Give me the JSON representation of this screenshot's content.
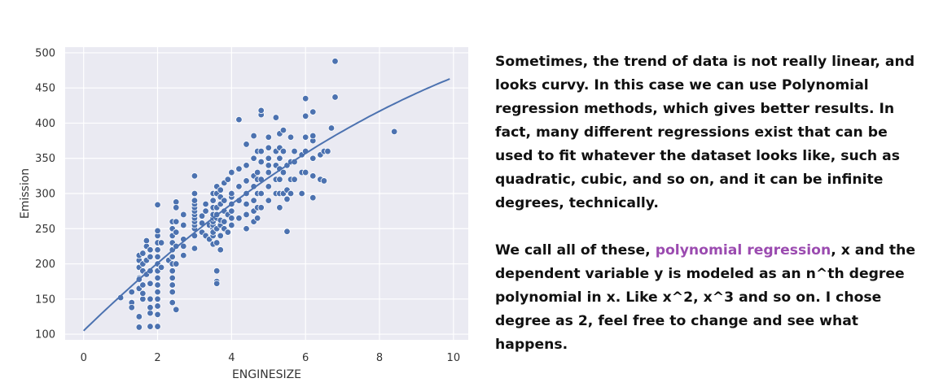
{
  "colors": {
    "plot_bg": "#eaeaf2",
    "grid": "#ffffff",
    "points": "#4c72b0",
    "point_edge": "#ffffff",
    "curve": "#4c72b0",
    "highlight": "#9b4bb0"
  },
  "text": {
    "para1": "Sometimes, the trend of data is not really linear, and looks curvy. In this case we can use Polynomial regression methods, which gives better results. In fact, many different regressions exist that can be used to fit whatever the dataset looks like, such as quadratic, cubic, and so on, and it can be infinite degrees, technically.",
    "para2_pre": "We call all of these, ",
    "para2_highlight": "polynomial regression",
    "para2_post": ", x and the dependent variable y is modeled as an n^th degree polynomial in x. Like x^2, x^3 and so on. I chose degree as 2, feel free to change and see what happens."
  },
  "chart_data": {
    "type": "scatter",
    "xlabel": "ENGINESIZE",
    "ylabel": "Emission",
    "xlim": [
      -0.5,
      10.4
    ],
    "ylim": [
      92,
      508
    ],
    "xticks": [
      0,
      2,
      4,
      6,
      8,
      10
    ],
    "yticks": [
      100,
      150,
      200,
      250,
      300,
      350,
      400,
      450,
      500
    ],
    "grid": true,
    "fit_curve": {
      "degree": 2,
      "coefficients": [
        105,
        51,
        -1.5
      ],
      "x_range": [
        0,
        9.9
      ]
    },
    "points": [
      [
        1.0,
        152
      ],
      [
        1.3,
        160
      ],
      [
        1.3,
        145
      ],
      [
        1.3,
        138
      ],
      [
        1.5,
        165
      ],
      [
        1.5,
        180
      ],
      [
        1.5,
        195
      ],
      [
        1.5,
        205
      ],
      [
        1.5,
        212
      ],
      [
        1.5,
        178
      ],
      [
        1.5,
        125
      ],
      [
        1.5,
        110
      ],
      [
        1.6,
        170
      ],
      [
        1.6,
        190
      ],
      [
        1.6,
        200
      ],
      [
        1.6,
        215
      ],
      [
        1.6,
        150
      ],
      [
        1.6,
        158
      ],
      [
        1.7,
        185
      ],
      [
        1.7,
        205
      ],
      [
        1.7,
        225
      ],
      [
        1.7,
        233
      ],
      [
        1.8,
        172
      ],
      [
        1.8,
        190
      ],
      [
        1.8,
        210
      ],
      [
        1.8,
        220
      ],
      [
        1.8,
        150
      ],
      [
        1.8,
        130
      ],
      [
        1.8,
        138
      ],
      [
        1.8,
        111
      ],
      [
        2.0,
        160
      ],
      [
        2.0,
        170
      ],
      [
        2.0,
        180
      ],
      [
        2.0,
        190
      ],
      [
        2.0,
        200
      ],
      [
        2.0,
        210
      ],
      [
        2.0,
        220
      ],
      [
        2.0,
        230
      ],
      [
        2.0,
        240
      ],
      [
        2.0,
        247
      ],
      [
        2.0,
        284
      ],
      [
        2.0,
        150
      ],
      [
        2.0,
        140
      ],
      [
        2.0,
        128
      ],
      [
        2.0,
        111
      ],
      [
        2.1,
        195
      ],
      [
        2.1,
        230
      ],
      [
        2.3,
        205
      ],
      [
        2.4,
        180
      ],
      [
        2.4,
        190
      ],
      [
        2.4,
        200
      ],
      [
        2.4,
        210
      ],
      [
        2.4,
        220
      ],
      [
        2.4,
        230
      ],
      [
        2.4,
        240
      ],
      [
        2.4,
        250
      ],
      [
        2.4,
        260
      ],
      [
        2.4,
        170
      ],
      [
        2.4,
        160
      ],
      [
        2.4,
        145
      ],
      [
        2.5,
        135
      ],
      [
        2.5,
        200
      ],
      [
        2.5,
        225
      ],
      [
        2.5,
        245
      ],
      [
        2.5,
        288
      ],
      [
        2.5,
        260
      ],
      [
        2.5,
        280
      ],
      [
        2.7,
        235
      ],
      [
        2.7,
        255
      ],
      [
        2.7,
        270
      ],
      [
        2.7,
        212
      ],
      [
        2.7,
        225
      ],
      [
        3.0,
        240
      ],
      [
        3.0,
        250
      ],
      [
        3.0,
        255
      ],
      [
        3.0,
        260
      ],
      [
        3.0,
        265
      ],
      [
        3.0,
        270
      ],
      [
        3.0,
        275
      ],
      [
        3.0,
        280
      ],
      [
        3.0,
        285
      ],
      [
        3.0,
        290
      ],
      [
        3.0,
        300
      ],
      [
        3.0,
        222
      ],
      [
        3.0,
        325
      ],
      [
        3.2,
        245
      ],
      [
        3.2,
        258
      ],
      [
        3.2,
        268
      ],
      [
        3.3,
        240
      ],
      [
        3.3,
        275
      ],
      [
        3.3,
        285
      ],
      [
        3.4,
        235
      ],
      [
        3.4,
        255
      ],
      [
        3.5,
        228
      ],
      [
        3.5,
        240
      ],
      [
        3.5,
        250
      ],
      [
        3.5,
        255
      ],
      [
        3.5,
        260
      ],
      [
        3.5,
        265
      ],
      [
        3.5,
        270
      ],
      [
        3.5,
        280
      ],
      [
        3.5,
        290
      ],
      [
        3.5,
        300
      ],
      [
        3.5,
        245
      ],
      [
        3.6,
        230
      ],
      [
        3.6,
        250
      ],
      [
        3.6,
        265
      ],
      [
        3.6,
        270
      ],
      [
        3.6,
        280
      ],
      [
        3.6,
        300
      ],
      [
        3.6,
        310
      ],
      [
        3.6,
        190
      ],
      [
        3.6,
        175
      ],
      [
        3.6,
        172
      ],
      [
        3.7,
        220
      ],
      [
        3.7,
        240
      ],
      [
        3.7,
        255
      ],
      [
        3.7,
        262
      ],
      [
        3.7,
        285
      ],
      [
        3.7,
        295
      ],
      [
        3.7,
        305
      ],
      [
        3.8,
        250
      ],
      [
        3.8,
        260
      ],
      [
        3.8,
        275
      ],
      [
        3.8,
        290
      ],
      [
        3.8,
        315
      ],
      [
        3.9,
        245
      ],
      [
        3.9,
        270
      ],
      [
        3.9,
        320
      ],
      [
        4.0,
        255
      ],
      [
        4.0,
        265
      ],
      [
        4.0,
        275
      ],
      [
        4.0,
        285
      ],
      [
        4.0,
        295
      ],
      [
        4.0,
        330
      ],
      [
        4.0,
        300
      ],
      [
        4.2,
        265
      ],
      [
        4.2,
        290
      ],
      [
        4.2,
        310
      ],
      [
        4.2,
        335
      ],
      [
        4.2,
        405
      ],
      [
        4.4,
        250
      ],
      [
        4.4,
        270
      ],
      [
        4.4,
        285
      ],
      [
        4.4,
        300
      ],
      [
        4.4,
        318
      ],
      [
        4.4,
        340
      ],
      [
        4.4,
        370
      ],
      [
        4.6,
        260
      ],
      [
        4.6,
        275
      ],
      [
        4.6,
        290
      ],
      [
        4.6,
        310
      ],
      [
        4.6,
        325
      ],
      [
        4.6,
        350
      ],
      [
        4.6,
        382
      ],
      [
        4.7,
        265
      ],
      [
        4.7,
        280
      ],
      [
        4.7,
        300
      ],
      [
        4.7,
        320
      ],
      [
        4.7,
        330
      ],
      [
        4.7,
        360
      ],
      [
        4.8,
        280
      ],
      [
        4.8,
        300
      ],
      [
        4.8,
        320
      ],
      [
        4.8,
        345
      ],
      [
        4.8,
        360
      ],
      [
        4.8,
        412
      ],
      [
        4.8,
        418
      ],
      [
        5.0,
        290
      ],
      [
        5.0,
        310
      ],
      [
        5.0,
        330
      ],
      [
        5.0,
        340
      ],
      [
        5.0,
        350
      ],
      [
        5.0,
        365
      ],
      [
        5.0,
        380
      ],
      [
        5.2,
        300
      ],
      [
        5.2,
        320
      ],
      [
        5.2,
        340
      ],
      [
        5.2,
        360
      ],
      [
        5.2,
        408
      ],
      [
        5.3,
        280
      ],
      [
        5.3,
        300
      ],
      [
        5.3,
        320
      ],
      [
        5.3,
        335
      ],
      [
        5.3,
        350
      ],
      [
        5.3,
        365
      ],
      [
        5.3,
        385
      ],
      [
        5.4,
        300
      ],
      [
        5.4,
        330
      ],
      [
        5.4,
        360
      ],
      [
        5.4,
        390
      ],
      [
        5.5,
        246
      ],
      [
        5.5,
        292
      ],
      [
        5.5,
        305
      ],
      [
        5.5,
        340
      ],
      [
        5.6,
        300
      ],
      [
        5.6,
        320
      ],
      [
        5.6,
        345
      ],
      [
        5.6,
        380
      ],
      [
        5.7,
        320
      ],
      [
        5.7,
        345
      ],
      [
        5.7,
        360
      ],
      [
        5.9,
        300
      ],
      [
        5.9,
        330
      ],
      [
        5.9,
        355
      ],
      [
        6.0,
        330
      ],
      [
        6.0,
        360
      ],
      [
        6.0,
        380
      ],
      [
        6.0,
        410
      ],
      [
        6.0,
        435
      ],
      [
        6.2,
        294
      ],
      [
        6.2,
        325
      ],
      [
        6.2,
        350
      ],
      [
        6.2,
        375
      ],
      [
        6.2,
        382
      ],
      [
        6.2,
        416
      ],
      [
        6.4,
        320
      ],
      [
        6.4,
        355
      ],
      [
        6.5,
        318
      ],
      [
        6.5,
        360
      ],
      [
        6.6,
        360
      ],
      [
        6.7,
        393
      ],
      [
        6.8,
        437
      ],
      [
        6.8,
        488
      ],
      [
        8.4,
        388
      ]
    ]
  }
}
